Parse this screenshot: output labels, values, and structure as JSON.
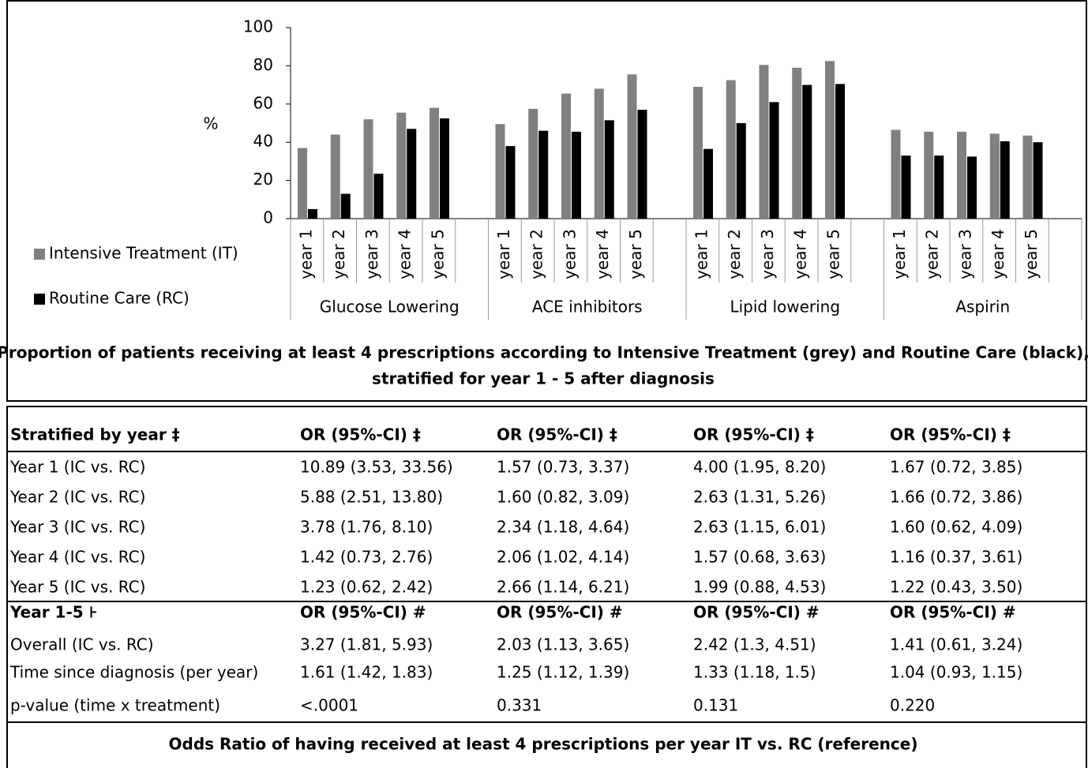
{
  "chart_data": {
    "type": "bar",
    "ylabel": "%",
    "groups": [
      "Glucose Lowering",
      "ACE inhibitors",
      "Lipid lowering",
      "Aspirin"
    ],
    "categories": [
      "year 1",
      "year 2",
      "year 3",
      "year 4",
      "year 5",
      "year 1",
      "year 2",
      "year 3",
      "year 4",
      "year 5",
      "year 1",
      "year 2",
      "year 3",
      "year 4",
      "year 5",
      "year 1",
      "year 2",
      "year 3",
      "year 4",
      "year 5"
    ],
    "series": [
      {
        "name": "Intensive Treatment (IT)",
        "color": "#808080",
        "values": [
          37,
          44,
          52,
          55.5,
          58,
          49.5,
          57.5,
          65.5,
          68,
          75.5,
          69,
          72.5,
          80.5,
          79,
          82.5,
          46.5,
          45.5,
          45.5,
          44.5,
          43.5
        ]
      },
      {
        "name": "Routine Care (RC)",
        "color": "#000000",
        "values": [
          5,
          13,
          23.5,
          47,
          52.5,
          38,
          46,
          45.5,
          51.5,
          57,
          36.5,
          50,
          61,
          70,
          70.5,
          33,
          33,
          32.5,
          40.5,
          40
        ]
      }
    ],
    "ylim": [
      0,
      100
    ],
    "yticks": [
      0,
      20,
      40,
      60,
      80,
      100
    ],
    "caption": [
      "Proportion of patients receiving at least 4 prescriptions according to Intensive Treatment (grey) and Routine Care (black),",
      "stratified for year 1 - 5 after diagnosis"
    ]
  },
  "table": {
    "header": [
      "Stratified by year ‡",
      "OR (95%-CI) ‡",
      "OR (95%-CI) ‡",
      "OR (95%-CI) ‡",
      "OR (95%-CI) ‡"
    ],
    "rows": [
      [
        "Year 1 (IC vs. RC)",
        "10.89 (3.53, 33.56)",
        "1.57 (0.73, 3.37)",
        "4.00 (1.95, 8.20)",
        "1.67 (0.72, 3.85)"
      ],
      [
        "Year 2 (IC vs. RC)",
        "5.88 (2.51, 13.80)",
        "1.60 (0.82, 3.09)",
        "2.63 (1.31, 5.26)",
        "1.66 (0.72, 3.86)"
      ],
      [
        "Year 3 (IC vs. RC)",
        "3.78 (1.76, 8.10)",
        "2.34 (1.18, 4.64)",
        "2.63 (1.15, 6.01)",
        "1.60 (0.62, 4.09)"
      ],
      [
        "Year 4 (IC vs. RC)",
        "1.42 (0.73, 2.76)",
        "2.06 (1.02, 4.14)",
        "1.57 (0.68, 3.63)",
        "1.16 (0.37, 3.61)"
      ],
      [
        "Year 5 (IC vs. RC)",
        "1.23 (0.62, 2.42)",
        "2.66 (1.14, 6.21)",
        "1.99 (0.88, 4.53)",
        "1.22 (0.43, 3.50)"
      ]
    ],
    "header2": [
      "Year 1-5 ⊦",
      "OR (95%-CI) #",
      "OR (95%-CI) #",
      "OR (95%-CI) #",
      "OR (95%-CI) #"
    ],
    "rows2": [
      [
        "Overall  (IC vs. RC)",
        "3.27 (1.81, 5.93)",
        "2.03 (1.13, 3.65)",
        "2.42 (1.3, 4.51)",
        "1.41 (0.61, 3.24)"
      ],
      [
        "Time since diagnosis (per year)",
        "1.61 (1.42, 1.83)",
        "1.25 (1.12, 1.39)",
        "1.33 (1.18, 1.5)",
        "1.04 (0.93, 1.15)"
      ],
      [
        "p-value (time x treatment)",
        "<.0001",
        "0.331",
        "0.131",
        "0.220"
      ]
    ],
    "caption": "Odds Ratio of having received at least 4 prescriptions per year IT vs. RC (reference)"
  }
}
